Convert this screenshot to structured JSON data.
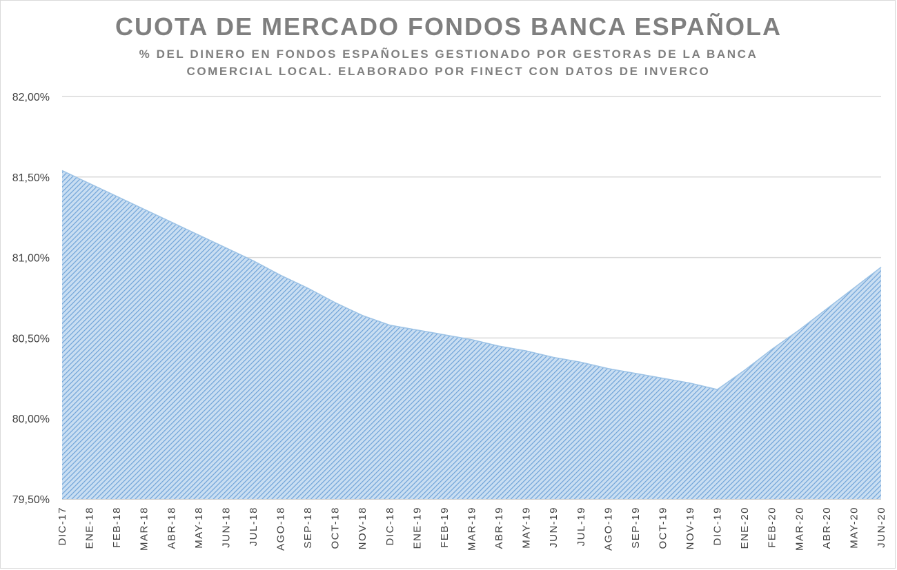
{
  "chart_data": {
    "type": "area",
    "title": "CUOTA DE MERCADO FONDOS BANCA ESPAÑOLA",
    "subtitle": "% DEL DINERO EN FONDOS ESPAÑOLES GESTIONADO POR GESTORAS DE LA BANCA COMERCIAL LOCAL. ELABORADO POR FINECT CON DATOS DE INVERCO",
    "xlabel": "",
    "ylabel": "",
    "categories": [
      "DIC-17",
      "ENE-18",
      "FEB-18",
      "MAR-18",
      "ABR-18",
      "MAY-18",
      "JUN-18",
      "JUL-18",
      "AGO-18",
      "SEP-18",
      "OCT-18",
      "NOV-18",
      "DIC-18",
      "ENE-19",
      "FEB-19",
      "MAR-19",
      "ABR-19",
      "MAY-19",
      "JUN-19",
      "JUL-19",
      "AGO-19",
      "SEP-19",
      "OCT-19",
      "NOV-19",
      "DIC-19",
      "ENE-20",
      "FEB-20",
      "MAR-20",
      "ABR-20",
      "MAY-20",
      "JUN-20"
    ],
    "values": [
      81.54,
      81.46,
      81.38,
      81.3,
      81.22,
      81.14,
      81.06,
      80.98,
      80.89,
      80.81,
      80.72,
      80.64,
      80.58,
      80.55,
      80.52,
      80.49,
      80.45,
      80.42,
      80.38,
      80.35,
      80.31,
      80.28,
      80.25,
      80.22,
      80.18,
      80.3,
      80.43,
      80.55,
      80.68,
      80.81,
      80.94
    ],
    "ylim": [
      79.5,
      82.0
    ],
    "y_ticks": [
      "79,50%",
      "80,00%",
      "80,50%",
      "81,00%",
      "81,50%",
      "82,00%"
    ],
    "grid": true,
    "colors": {
      "fill": "#bdd7ee",
      "hatch": "#5b9bd5",
      "title": "#7f7f7f"
    }
  }
}
